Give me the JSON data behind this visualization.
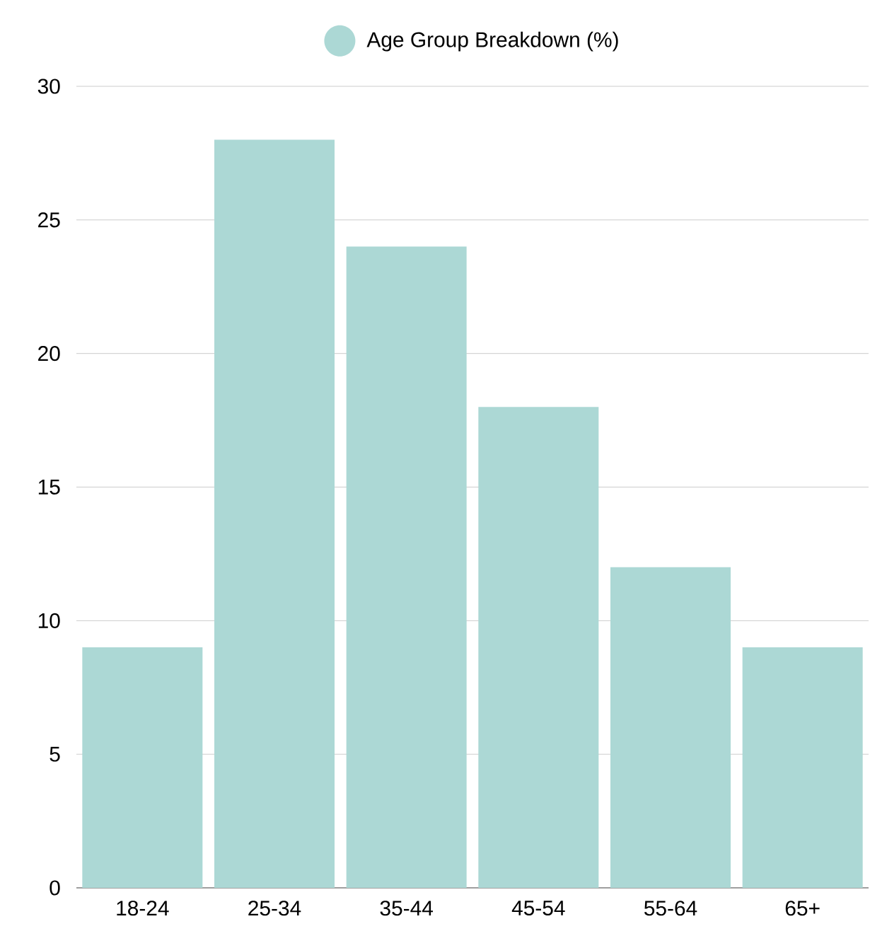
{
  "chart_data": {
    "type": "bar",
    "categories": [
      "18-24",
      "25-34",
      "35-44",
      "45-54",
      "55-64",
      "65+"
    ],
    "series": [
      {
        "name": "Age Group Breakdown (%)",
        "color": "#acd8d5",
        "values": [
          9,
          28,
          24,
          18,
          12,
          9
        ]
      }
    ],
    "ylim": [
      0,
      30
    ],
    "yticks": [
      0,
      5,
      10,
      15,
      20,
      25,
      30
    ],
    "grid": "y",
    "legend": "top"
  }
}
